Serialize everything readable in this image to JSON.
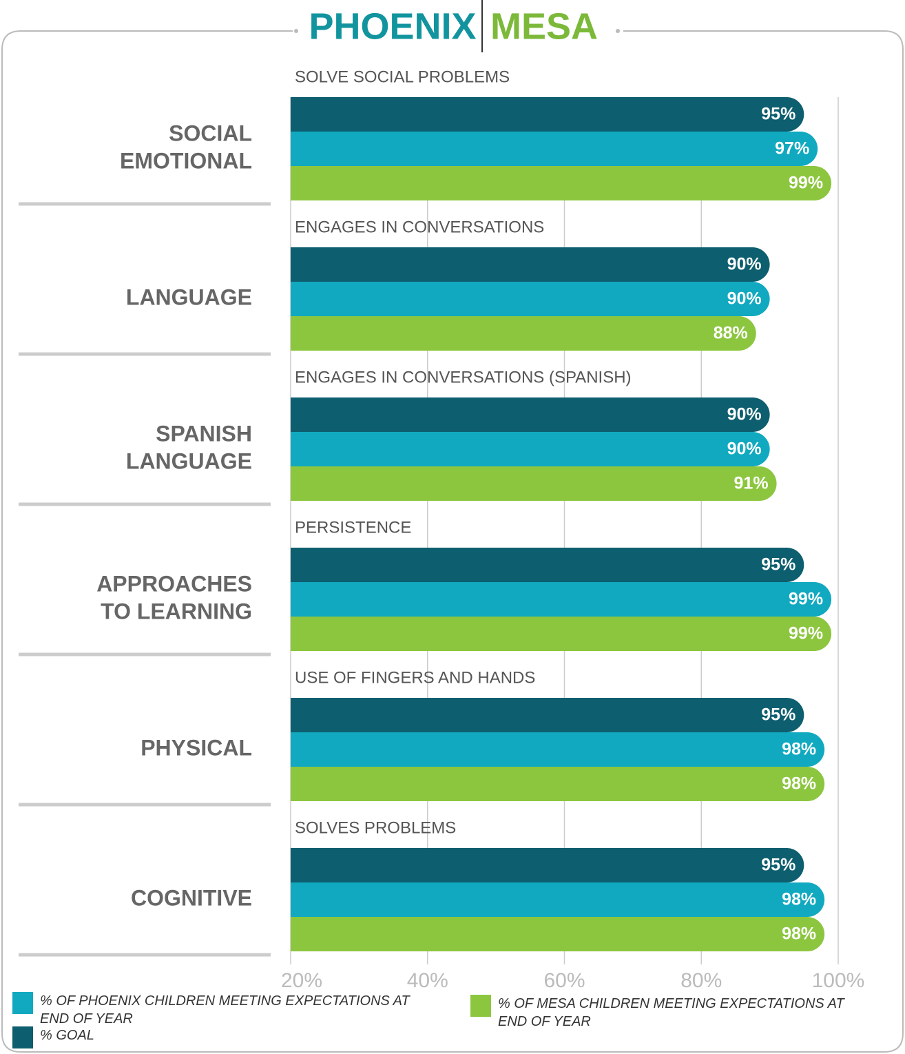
{
  "chart_data": {
    "type": "bar",
    "titles": [
      "PHOENIX",
      "MESA"
    ],
    "title_colors": [
      "#12949f",
      "#7cb93a"
    ],
    "categories": [
      [
        "SOCIAL",
        "EMOTIONAL"
      ],
      [
        "LANGUAGE"
      ],
      [
        "SPANISH",
        "LANGUAGE"
      ],
      [
        "APPROACHES",
        "TO LEARNING"
      ],
      [
        "PHYSICAL"
      ],
      [
        "COGNITIVE"
      ]
    ],
    "subtitles": [
      "SOLVE SOCIAL PROBLEMS",
      "ENGAGES IN CONVERSATIONS",
      "ENGAGES IN CONVERSATIONS (SPANISH)",
      "PERSISTENCE",
      "USE OF FINGERS AND HANDS",
      "SOLVES PROBLEMS"
    ],
    "series": [
      {
        "name": "% GOAL",
        "color": "#0d5e6e",
        "values": [
          95,
          90,
          90,
          95,
          95,
          95
        ],
        "value_labels": [
          "95%",
          "90%",
          "90%",
          "95%",
          "95%",
          "95%"
        ]
      },
      {
        "name": "% OF PHOENIX CHILDREN MEETING EXPECTATIONS AT END OF YEAR",
        "color": "#10a9c0",
        "values": [
          97,
          90,
          90,
          99,
          98,
          98
        ],
        "value_labels": [
          "97%",
          "90%",
          "90%",
          "99%",
          "98%",
          "98%"
        ]
      },
      {
        "name": "% OF MESA CHILDREN MEETING EXPECTATIONS AT END OF YEAR",
        "color": "#8cc63f",
        "values": [
          99,
          88,
          91,
          99,
          98,
          98
        ],
        "value_labels": [
          "99%",
          "88%",
          "91%",
          "99%",
          "98%",
          "98%"
        ]
      }
    ],
    "xlim": [
      20,
      100
    ],
    "xticks": [
      {
        "value": 20,
        "label": "20%"
      },
      {
        "value": 40,
        "label": "40%"
      },
      {
        "value": 60,
        "label": "60%"
      },
      {
        "value": 80,
        "label": "80%"
      },
      {
        "value": 100,
        "label": "100%"
      }
    ],
    "grid": true
  }
}
